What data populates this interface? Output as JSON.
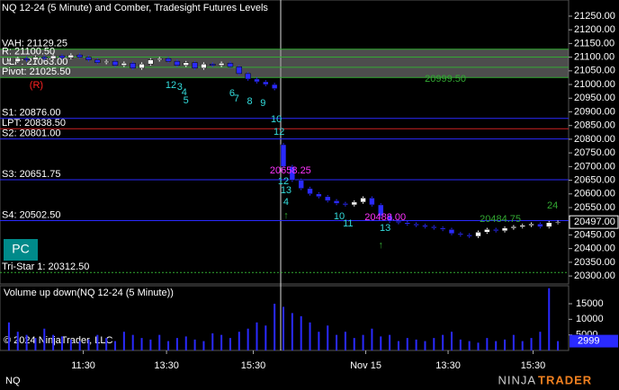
{
  "chart_data": {
    "type": "candlestick",
    "title": "NQ 12-24 (5 Minute) and Comber, Tradesight Futures Levels",
    "up_color": "#ffffff",
    "down_color": "#2a2aff",
    "open": [
      21080,
      21085,
      21095,
      21090,
      21100,
      21095,
      21105,
      21098,
      21108,
      21100,
      21090,
      21080,
      21085,
      21070,
      21078,
      21060,
      21075,
      21090,
      21095,
      21085,
      21070,
      21080,
      21060,
      21075,
      21070,
      21078,
      21065,
      21040,
      21020,
      21010,
      21000,
      20780,
      20700,
      20650,
      20620,
      20600,
      20590,
      20575,
      20565,
      20560,
      20570,
      20585,
      20560,
      20520,
      20500,
      20495,
      20490,
      20485,
      20480,
      20475,
      20470,
      20455,
      20450,
      20445,
      20460,
      20470,
      20465,
      20475,
      20480,
      20485,
      20490,
      20480,
      20495
    ],
    "high": [
      21091,
      21101,
      21101,
      21106,
      21106,
      21111,
      21111,
      21114,
      21114,
      21106,
      21096,
      21091,
      21091,
      21084,
      21084,
      21081,
      21096,
      21101,
      21101,
      21091,
      21086,
      21086,
      21081,
      21081,
      21084,
      21084,
      21071,
      21046,
      21026,
      21016,
      21006,
      20786,
      20706,
      20656,
      20626,
      20606,
      20596,
      20581,
      20571,
      20576,
      20591,
      20591,
      20566,
      20526,
      20506,
      20501,
      20496,
      20491,
      20486,
      20481,
      20476,
      20461,
      20456,
      20466,
      20476,
      20476,
      20481,
      20486,
      20491,
      20496,
      20496,
      20501,
      20503
    ],
    "low": [
      21074,
      21079,
      21084,
      21084,
      21089,
      21089,
      21092,
      21092,
      21094,
      21084,
      21074,
      21074,
      21064,
      21064,
      21054,
      21054,
      21069,
      21084,
      21079,
      21064,
      21064,
      21054,
      21054,
      21064,
      21064,
      21059,
      21034,
      21014,
      21004,
      20994,
      20979,
      20694,
      20644,
      20614,
      20594,
      20584,
      20569,
      20559,
      20554,
      20554,
      20564,
      20554,
      20514,
      20494,
      20489,
      20484,
      20479,
      20474,
      20469,
      20464,
      20449,
      20444,
      20439,
      20439,
      20454,
      20459,
      20459,
      20469,
      20474,
      20479,
      20474,
      20474,
      20489
    ],
    "close": [
      21085,
      21095,
      21090,
      21100,
      21095,
      21105,
      21098,
      21108,
      21100,
      21090,
      21080,
      21085,
      21070,
      21078,
      21060,
      21075,
      21090,
      21095,
      21085,
      21070,
      21080,
      21060,
      21075,
      21070,
      21078,
      21065,
      21040,
      21020,
      21010,
      21000,
      20985,
      20700,
      20650,
      20620,
      20600,
      20590,
      20575,
      20565,
      20560,
      20570,
      20585,
      20560,
      20520,
      20500,
      20495,
      20490,
      20485,
      20480,
      20475,
      20470,
      20455,
      20450,
      20445,
      20460,
      20470,
      20465,
      20475,
      20480,
      20485,
      20490,
      20480,
      20495,
      20497
    ],
    "ylim": [
      20274,
      21309
    ],
    "yticks": [
      {
        "value": 20300,
        "label": "20300.00"
      },
      {
        "value": 20350,
        "label": "20350.00"
      },
      {
        "value": 20400,
        "label": "20400.00"
      },
      {
        "value": 20450,
        "label": "20450.00"
      },
      {
        "value": 20550,
        "label": "20550.00"
      },
      {
        "value": 20600,
        "label": "20600.00"
      },
      {
        "value": 20650,
        "label": "20650.00"
      },
      {
        "value": 20700,
        "label": "20700.00"
      },
      {
        "value": 20750,
        "label": "20750.00"
      },
      {
        "value": 20800,
        "label": "20800.00"
      },
      {
        "value": 20850,
        "label": "20850.00"
      },
      {
        "value": 20900,
        "label": "20900.00"
      },
      {
        "value": 20950,
        "label": "20950.00"
      },
      {
        "value": 21000,
        "label": "21000.00"
      },
      {
        "value": 21050,
        "label": "21050.00"
      },
      {
        "value": 21100,
        "label": "21100.00"
      },
      {
        "value": 21150,
        "label": "21150.00"
      },
      {
        "value": 21200,
        "label": "21200.00"
      },
      {
        "value": 21250,
        "label": "21250.00"
      }
    ],
    "last_price": {
      "value": 20497,
      "label": "20497.00"
    },
    "xticks": [
      {
        "value": 8.4,
        "label": "11:30"
      },
      {
        "value": 17.8,
        "label": "13:30"
      },
      {
        "value": 27.6,
        "label": "15:30"
      },
      {
        "value": 40.3,
        "label": "Nov 15"
      },
      {
        "value": 49.6,
        "label": "13:30"
      },
      {
        "value": 59.2,
        "label": "15:30"
      }
    ],
    "levels": [
      {
        "label": "VAH: 21129.25",
        "value": 21129.25,
        "color": "#33aa33"
      },
      {
        "label": "R: 21100.50",
        "value": 21100.5,
        "color": "#33aa33"
      },
      {
        "label": "ULP: 21063.00",
        "value": 21063,
        "color": "#33aa33"
      },
      {
        "label": "Pivot: 21025.50",
        "value": 21025.5,
        "color": "#33aa33"
      },
      {
        "label": "S1: 20876.00",
        "value": 20876,
        "color": "#2a2aff"
      },
      {
        "label": "LPT: 20838.50",
        "value": 20838.5,
        "color": "#cc2222"
      },
      {
        "label": "S2: 20801.00",
        "value": 20801,
        "color": "#2a2aff"
      },
      {
        "label": "S3: 20651.75",
        "value": 20651.75,
        "color": "#2a2aff"
      },
      {
        "label": "S4: 20502.50",
        "value": 20502.5,
        "color": "#2a2aff"
      },
      {
        "label": "Tri-Star 1: 20312.50",
        "value": 20312.5,
        "color": "#33aa33"
      }
    ],
    "annotations": [
      {
        "text": "(R)",
        "i": 3.1,
        "price": 20997,
        "color": "#ff2222"
      },
      {
        "text": "12",
        "i": 18.3,
        "price": 20997,
        "color": "#33dddd"
      },
      {
        "text": "3",
        "i": 19.3,
        "price": 20990,
        "color": "#33dddd"
      },
      {
        "text": "4",
        "i": 19.8,
        "price": 20970,
        "color": "#33dddd"
      },
      {
        "text": "5",
        "i": 20,
        "price": 20941,
        "color": "#33dddd"
      },
      {
        "text": "6",
        "i": 25.2,
        "price": 20967,
        "color": "#33dddd"
      },
      {
        "text": "7",
        "i": 25.7,
        "price": 20947,
        "color": "#33dddd"
      },
      {
        "text": "8",
        "i": 27.2,
        "price": 20938,
        "color": "#33dddd"
      },
      {
        "text": "9",
        "i": 28.7,
        "price": 20931,
        "color": "#33dddd"
      },
      {
        "text": "10",
        "i": 30.2,
        "price": 20872,
        "color": "#33dddd"
      },
      {
        "text": "12",
        "i": 30.5,
        "price": 20826,
        "color": "#33dddd"
      },
      {
        "text": "20658.25",
        "i": 31.8,
        "price": 20684,
        "color": "#ff33ff"
      },
      {
        "text": "12",
        "i": 31,
        "price": 20645,
        "color": "#33dddd"
      },
      {
        "text": "13",
        "i": 31.3,
        "price": 20612,
        "color": "#33dddd"
      },
      {
        "text": "4",
        "i": 31.3,
        "price": 20569,
        "color": "#33dddd"
      },
      {
        "text": "10",
        "i": 37.3,
        "price": 20517,
        "color": "#33dddd"
      },
      {
        "text": "11",
        "i": 38.3,
        "price": 20490,
        "color": "#33dddd"
      },
      {
        "text": "20488.00",
        "i": 42.5,
        "price": 20513,
        "color": "#ff33ff"
      },
      {
        "text": "13",
        "i": 42.5,
        "price": 20474,
        "color": "#33dddd"
      },
      {
        "text": "20999.50",
        "i": 49.3,
        "price": 21020,
        "color": "#33aa33"
      },
      {
        "text": "20484.75",
        "i": 55.5,
        "price": 20507,
        "color": "#33aa33"
      },
      {
        "text": "24",
        "i": 61.4,
        "price": 20556,
        "color": "#33aa33"
      },
      {
        "text": "↑",
        "i": 31.3,
        "price": 20520,
        "color": "#33aa33"
      },
      {
        "text": "↑",
        "i": 42,
        "price": 20412,
        "color": "#33aa33"
      }
    ],
    "button": "PC",
    "volume": {
      "title": "Volume up down(NQ 12-24 (5 Minute))",
      "values": [
        9000,
        6000,
        5000,
        4000,
        7000,
        5000,
        4500,
        3500,
        3000,
        3500,
        5000,
        4000,
        3000,
        6000,
        5000,
        4000,
        3500,
        5000,
        3000,
        4000,
        4500,
        3500,
        3000,
        5500,
        5000,
        4000,
        6000,
        7000,
        9000,
        8000,
        15000,
        14000,
        12000,
        11000,
        9000,
        6000,
        8000,
        5000,
        6000,
        4000,
        5000,
        7000,
        4500,
        5000,
        3000,
        4000,
        3500,
        3000,
        4000,
        5000,
        6000,
        3500,
        3000,
        2500,
        4000,
        3000,
        3500,
        5000,
        3000,
        4000,
        6000,
        20000,
        2999
      ],
      "color": "#2a2aff",
      "ylim": [
        0,
        20770
      ],
      "yticks": [
        5000,
        10000,
        15000
      ],
      "last_value": 2999
    },
    "copyright": "© 2024 NinjaTrader, LLC",
    "instrument": "NQ",
    "logo": {
      "left": "NINJA",
      "right": "TRADER"
    }
  }
}
